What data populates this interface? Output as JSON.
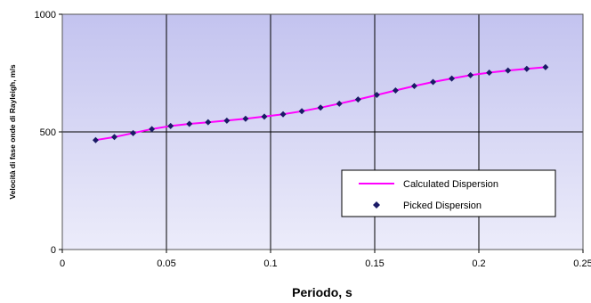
{
  "chart_data": {
    "type": "line",
    "xlabel": "Periodo, s",
    "ylabel": "Velocità di fase onde di Rayleigh, m/s",
    "xlim": [
      0,
      0.25
    ],
    "ylim": [
      0,
      1000
    ],
    "x_ticks": [
      0,
      0.05,
      0.1,
      0.15,
      0.2,
      0.25
    ],
    "x_tick_labels": [
      "0",
      "0.05",
      "0.1",
      "0.15",
      "0.2",
      "0.25"
    ],
    "y_ticks": [
      0,
      500,
      1000
    ],
    "y_tick_labels": [
      "0",
      "500",
      "1000"
    ],
    "grid": true,
    "legend_position": "bottom-right",
    "series": [
      {
        "name": "Calculated Dispersion",
        "kind": "line",
        "color": "#ff00ff",
        "x": [
          0.016,
          0.025,
          0.034,
          0.043,
          0.052,
          0.061,
          0.07,
          0.079,
          0.088,
          0.097,
          0.106,
          0.115,
          0.124,
          0.133,
          0.142,
          0.151,
          0.16,
          0.169,
          0.178,
          0.187,
          0.196,
          0.205,
          0.214,
          0.223,
          0.232
        ],
        "y": [
          465,
          478,
          495,
          512,
          525,
          534,
          541,
          548,
          556,
          565,
          575,
          588,
          603,
          620,
          638,
          657,
          676,
          695,
          712,
          727,
          741,
          752,
          761,
          768,
          775
        ]
      },
      {
        "name": "Picked Dispersion",
        "kind": "markers",
        "color": "#1a1a66",
        "x": [
          0.016,
          0.025,
          0.034,
          0.043,
          0.052,
          0.061,
          0.07,
          0.079,
          0.088,
          0.097,
          0.106,
          0.115,
          0.124,
          0.133,
          0.142,
          0.151,
          0.16,
          0.169,
          0.178,
          0.187,
          0.196,
          0.205,
          0.214,
          0.223,
          0.232
        ],
        "y": [
          465,
          478,
          495,
          512,
          525,
          534,
          541,
          548,
          556,
          565,
          575,
          588,
          603,
          620,
          638,
          657,
          676,
          695,
          712,
          727,
          741,
          752,
          761,
          768,
          775
        ]
      }
    ]
  },
  "colors": {
    "plot_top": "#c3c3ef",
    "plot_bottom": "#ececfa",
    "grid": "#000000",
    "line": "#ff00ff",
    "marker": "#1a1a66"
  }
}
